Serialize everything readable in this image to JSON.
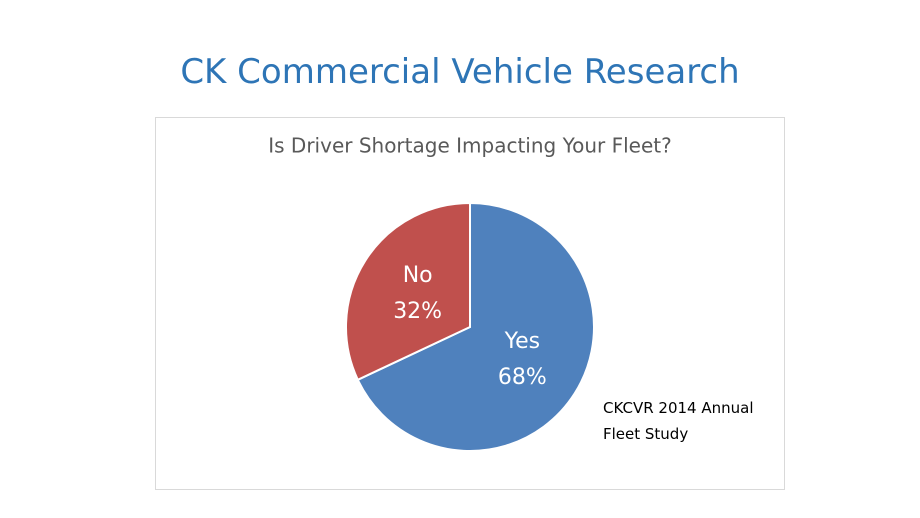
{
  "slide_title": "CK Commercial Vehicle Research",
  "chart_data": {
    "type": "pie",
    "title": "Is Driver Shortage Impacting Your Fleet?",
    "categories": [
      "Yes",
      "No"
    ],
    "values": [
      68,
      32
    ],
    "value_labels": [
      "68%",
      "32%"
    ],
    "colors": [
      "#4f81bd",
      "#c0504d"
    ],
    "annotation": "CKCVR 2014 Annual Fleet Study"
  }
}
